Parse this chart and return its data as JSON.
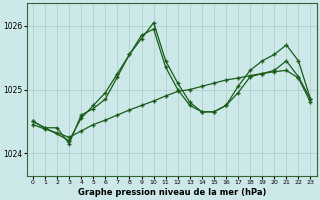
{
  "background_color": "#cce8e8",
  "plot_bg_color": "#cce8e8",
  "grid_color": "#b0c8c8",
  "line_color": "#1a5c1a",
  "xlabel": "Graphe pression niveau de la mer (hPa)",
  "xlim_min": -0.5,
  "xlim_max": 23.5,
  "ylim_min": 1023.65,
  "ylim_max": 1026.35,
  "yticks": [
    1024,
    1025,
    1026
  ],
  "xticks": [
    0,
    1,
    2,
    3,
    4,
    5,
    6,
    7,
    8,
    9,
    10,
    11,
    12,
    13,
    14,
    15,
    16,
    17,
    18,
    19,
    20,
    21,
    22,
    23
  ],
  "s1_x": [
    0,
    1,
    2,
    3,
    4,
    5,
    6,
    7,
    8,
    9,
    10,
    11,
    12,
    13,
    14,
    15,
    16,
    17,
    18,
    19,
    20,
    21,
    22,
    23
  ],
  "s1_y": [
    1024.5,
    1024.4,
    1024.4,
    1024.15,
    1024.6,
    1024.7,
    1024.85,
    1025.2,
    1025.55,
    1025.85,
    1025.95,
    1025.35,
    1025.0,
    1024.75,
    1024.65,
    1024.65,
    1024.75,
    1024.95,
    1025.2,
    1025.25,
    1025.3,
    1025.45,
    1025.2,
    1024.85
  ],
  "s2_x": [
    0,
    1,
    3,
    4,
    5,
    6,
    7,
    8,
    9,
    10,
    11,
    12,
    13,
    14,
    15,
    16,
    17,
    18,
    19,
    20,
    21,
    22,
    23
  ],
  "s2_y": [
    1024.5,
    1024.4,
    1024.2,
    1024.55,
    1024.75,
    1024.95,
    1025.25,
    1025.55,
    1025.8,
    1026.05,
    1025.45,
    1025.1,
    1024.8,
    1024.65,
    1024.65,
    1024.75,
    1025.05,
    1025.3,
    1025.45,
    1025.55,
    1025.7,
    1025.45,
    1024.85
  ],
  "s3_x": [
    0,
    1,
    2,
    3,
    4,
    5,
    6,
    7,
    8,
    9,
    10,
    11,
    12,
    13,
    14,
    15,
    16,
    17,
    18,
    19,
    20,
    21,
    22,
    23
  ],
  "s3_y": [
    1024.45,
    1024.38,
    1024.32,
    1024.25,
    1024.35,
    1024.45,
    1024.52,
    1024.6,
    1024.68,
    1024.75,
    1024.82,
    1024.9,
    1024.97,
    1025.0,
    1025.05,
    1025.1,
    1025.15,
    1025.18,
    1025.22,
    1025.25,
    1025.28,
    1025.3,
    1025.18,
    1024.8
  ],
  "marker": "+",
  "markersize": 3.5,
  "linewidth": 0.9
}
